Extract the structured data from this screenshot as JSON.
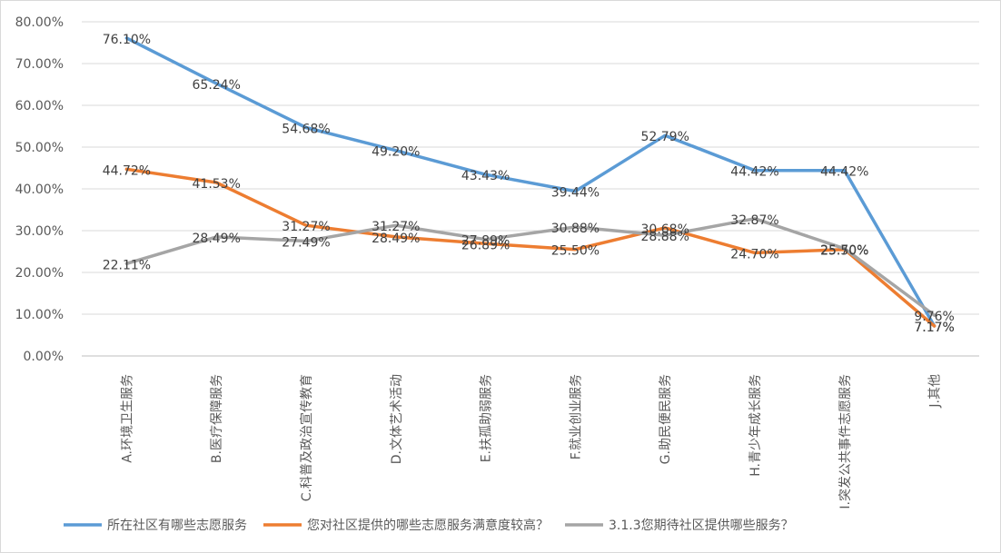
{
  "chart_data": {
    "type": "line",
    "categories": [
      "A.环境卫生服务",
      "B.医疗保障服务",
      "C.科普及政治宣传教育",
      "D.文体艺术活动",
      "E.扶孤助弱服务",
      "F.就业创业服务",
      "G.助民便民服务",
      "H.青少年成长服务",
      "I.突发公共事件志愿服务",
      "J.其他"
    ],
    "yticks": [
      "0.00%",
      "10.00%",
      "20.00%",
      "30.00%",
      "40.00%",
      "50.00%",
      "60.00%",
      "70.00%",
      "80.00%"
    ],
    "ylim": [
      0,
      80
    ],
    "grid": true,
    "legend_position": "bottom",
    "series": [
      {
        "name": "所在社区有哪些志愿服务",
        "color": "#5b9bd5",
        "values": [
          76.1,
          65.24,
          54.68,
          49.2,
          43.43,
          39.44,
          52.79,
          44.42,
          44.42,
          7.17
        ],
        "labels": [
          "76.10%",
          "65.24%",
          "54.68%",
          "49.20%",
          "43.43%",
          "39.44%",
          "52.79%",
          "44.42%",
          "44.42%",
          "7.17%"
        ]
      },
      {
        "name": "您对社区提供的哪些志愿服务满意度较高？",
        "color": "#ed7d31",
        "values": [
          44.72,
          41.53,
          31.27,
          28.49,
          26.89,
          25.5,
          30.68,
          24.7,
          25.5,
          7.17
        ],
        "labels": [
          "44.72%",
          "41.53%",
          "31.27%",
          "28.49%",
          "26.89%",
          "25.50%",
          "30.68%",
          "24.70%",
          "25.50%",
          "7.17%"
        ]
      },
      {
        "name": "3.1.3您期待社区提供哪些服务？",
        "color": "#a5a5a5",
        "values": [
          22.11,
          28.49,
          27.49,
          31.27,
          27.89,
          30.88,
          28.88,
          32.87,
          25.7,
          9.76
        ],
        "labels": [
          "22.11%",
          "28.49%",
          "27.49%",
          "31.27%",
          "27.89%",
          "30.88%",
          "28.88%",
          "32.87%",
          "25.70%",
          "9.76%"
        ]
      }
    ]
  }
}
